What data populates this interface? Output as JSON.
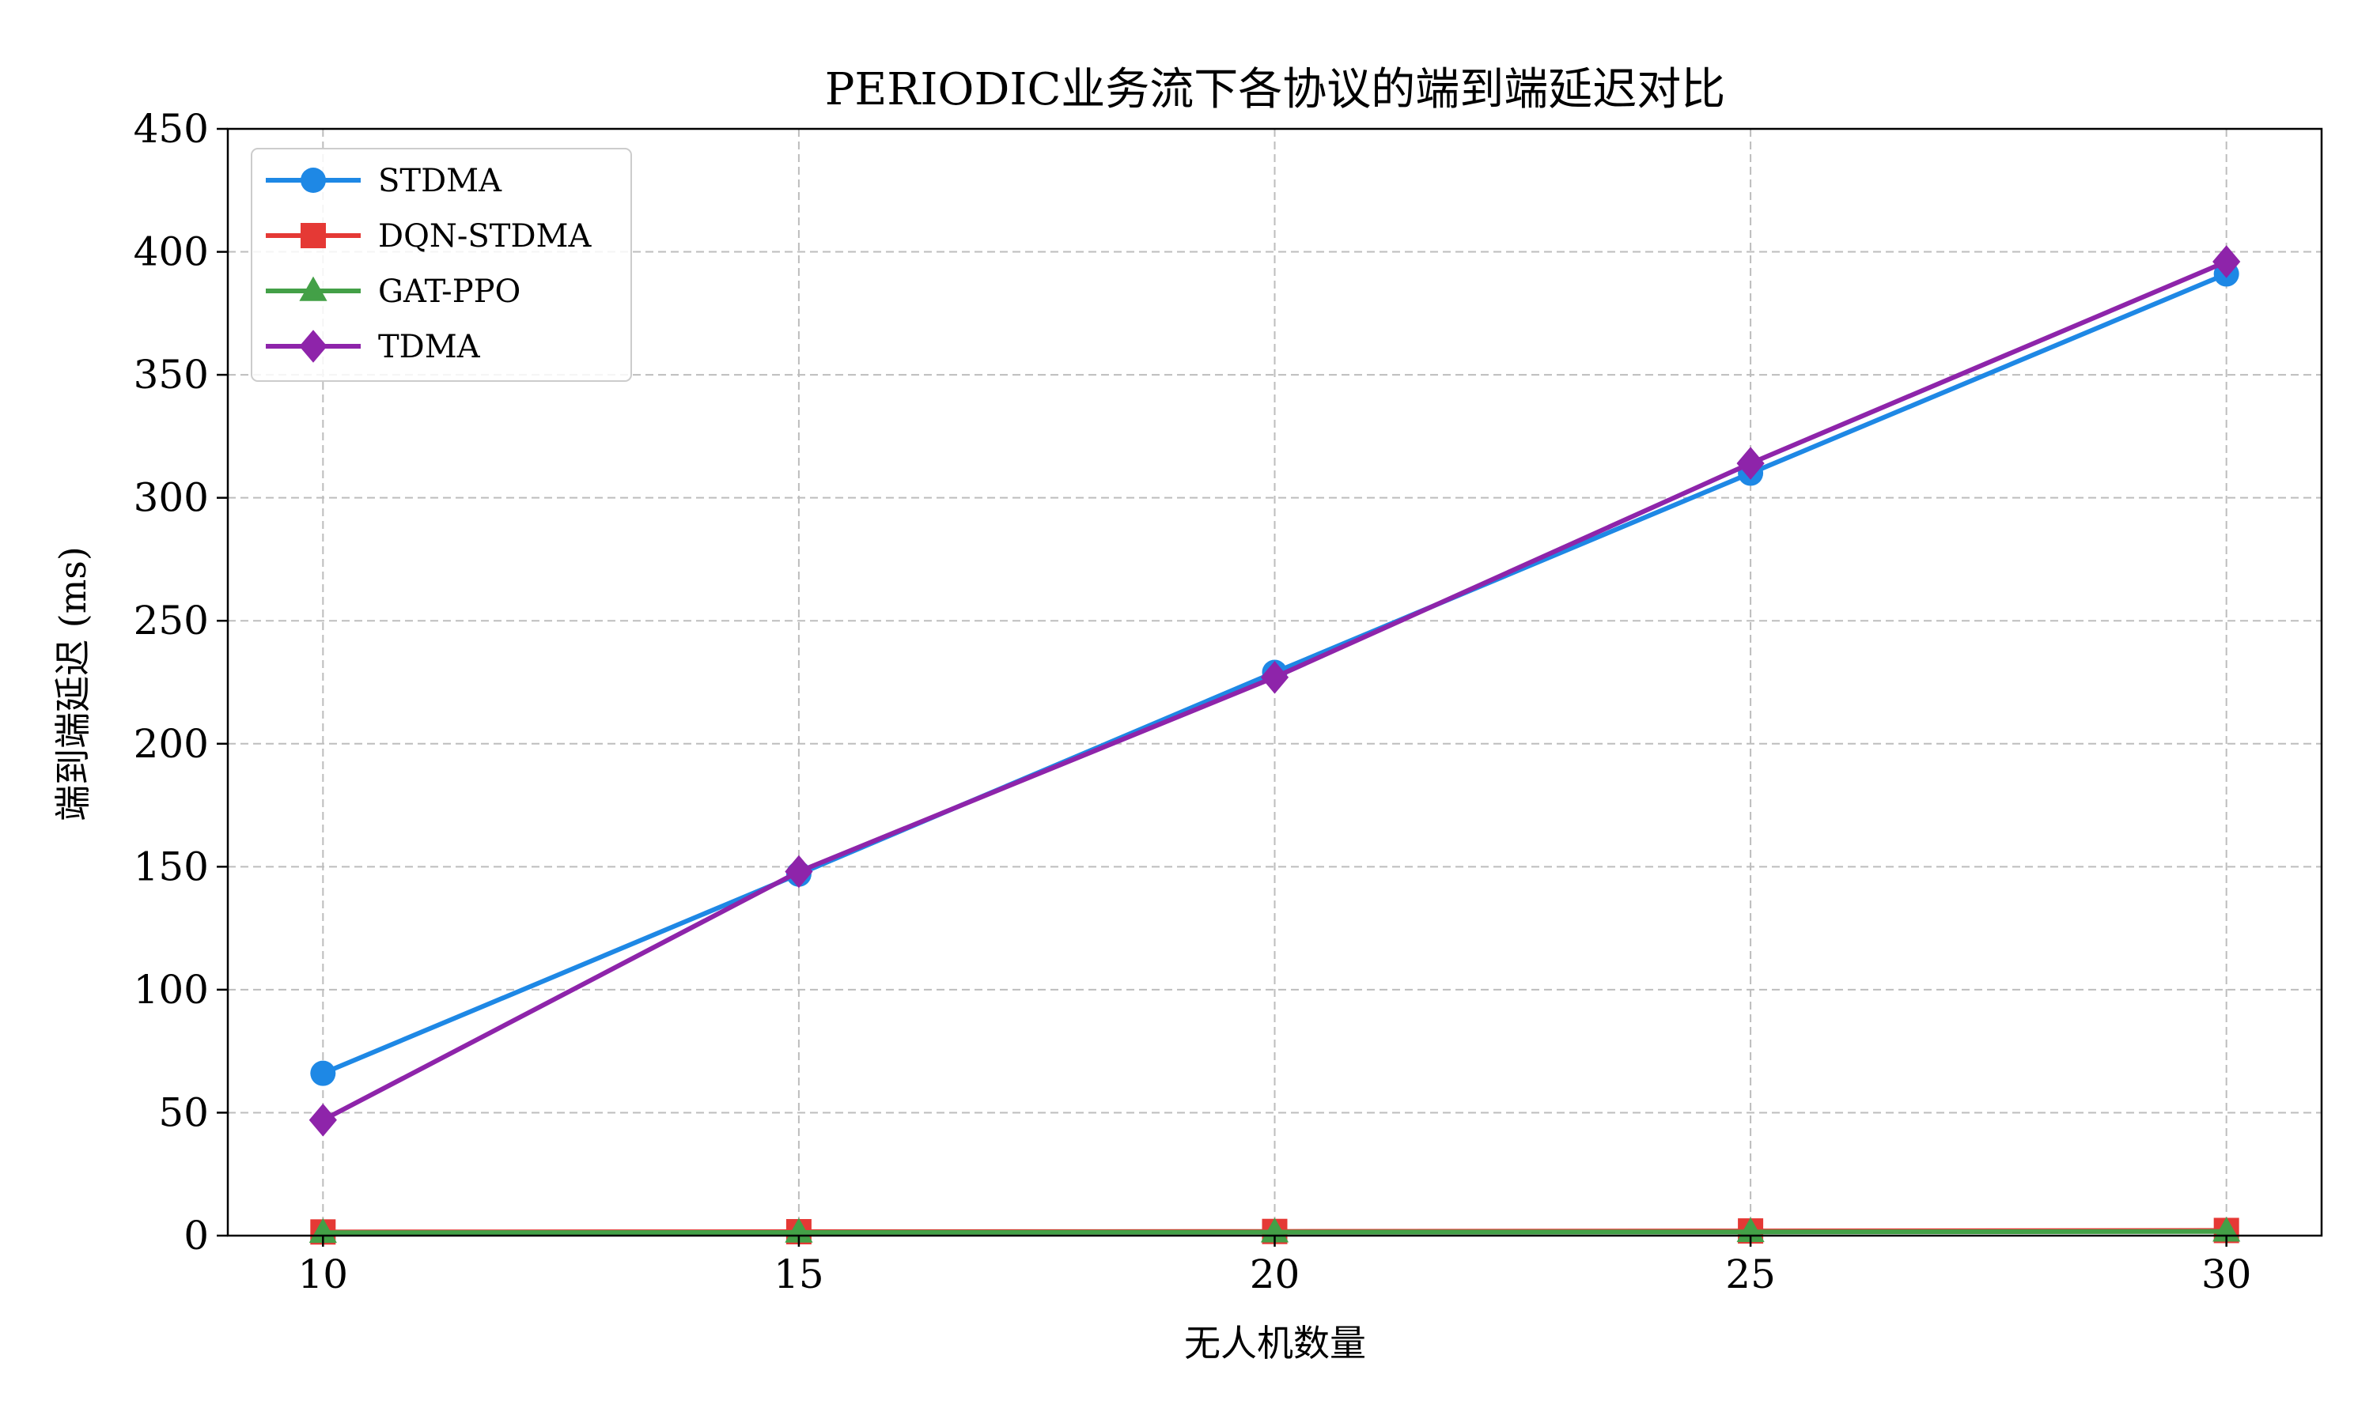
{
  "chart_data": {
    "type": "line",
    "title": "PERIODIC业务流下各协议的端到端延迟对比",
    "xlabel": "无人机数量",
    "ylabel": "端到端延迟 (ms)",
    "x": [
      10,
      15,
      20,
      25,
      30
    ],
    "xlim": [
      9,
      31
    ],
    "ylim": [
      0,
      450
    ],
    "xticks": [
      10,
      15,
      20,
      25,
      30
    ],
    "yticks": [
      0,
      50,
      100,
      150,
      200,
      250,
      300,
      350,
      400,
      450
    ],
    "grid": true,
    "legend_position": "top-left",
    "series": [
      {
        "name": "STDMA",
        "color": "#1e88e5",
        "marker": "circle",
        "values": [
          66,
          147,
          229,
          310,
          391
        ]
      },
      {
        "name": "DQN-STDMA",
        "color": "#e53935",
        "marker": "square",
        "values": [
          1.5,
          1.6,
          1.7,
          1.9,
          2.1
        ]
      },
      {
        "name": "GAT-PPO",
        "color": "#43a047",
        "marker": "triangle",
        "values": [
          1.2,
          1.3,
          1.4,
          1.5,
          1.7
        ]
      },
      {
        "name": "TDMA",
        "color": "#8e24aa",
        "marker": "diamond",
        "values": [
          47,
          148,
          227,
          314,
          396
        ]
      }
    ]
  }
}
